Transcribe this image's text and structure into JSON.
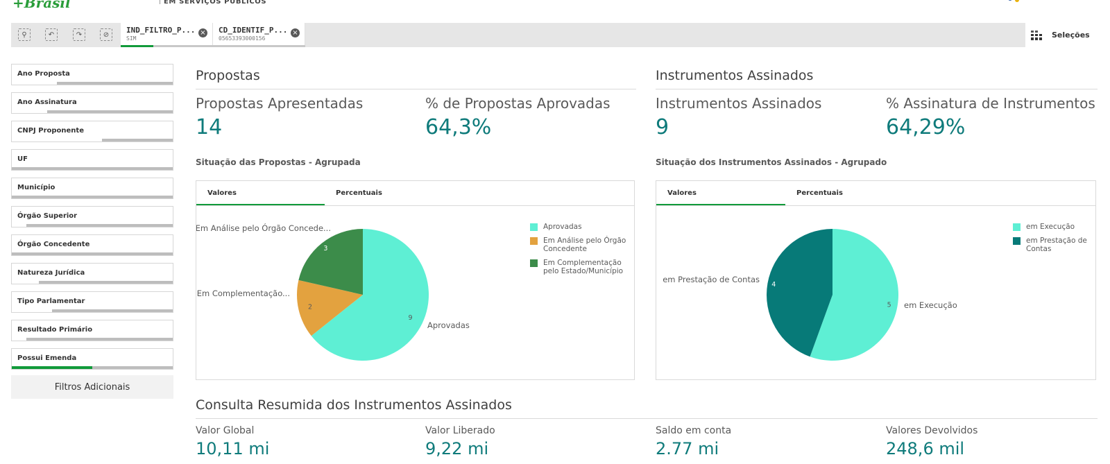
{
  "header": {
    "logo_text": "+Brasil",
    "subtitle": "EM SERVIÇOS PÚBLICOS"
  },
  "toolbar": {
    "selections": [
      {
        "field": "IND_FILTRO_P...",
        "value": "SIM",
        "fill_fraction": 0.35
      },
      {
        "field": "CD_IDENTIF_P...",
        "value": "05653393000156",
        "fill_fraction": 0.0
      }
    ],
    "selecoes_label": "Seleções"
  },
  "filters": [
    {
      "label": "Ano Proposta",
      "fill_fraction": 0.28
    },
    {
      "label": "Ano Assinatura",
      "fill_fraction": 0.22
    },
    {
      "label": "CNPJ Proponente",
      "fill_fraction": 0.56
    },
    {
      "label": "UF",
      "fill_fraction": 0.0
    },
    {
      "label": "Município",
      "fill_fraction": 0.0
    },
    {
      "label": "Órgão Superior",
      "fill_fraction": 0.09
    },
    {
      "label": "Órgão Concedente",
      "fill_fraction": 0.0
    },
    {
      "label": "Natureza Jurídica",
      "fill_fraction": 0.17
    },
    {
      "label": "Tipo Parlamentar",
      "fill_fraction": 0.25
    },
    {
      "label": "Resultado Primário",
      "fill_fraction": 0.09
    },
    {
      "label": "Possui Emenda",
      "fill_fraction": 0.5,
      "selected": true
    }
  ],
  "filtros_adicionais": "Filtros Adicionais",
  "propostas": {
    "title": "Propostas",
    "kpi1_label": "Propostas Apresentadas",
    "kpi1_value": "14",
    "kpi2_label": "% de Propostas Aprovadas",
    "kpi2_value": "64,3%",
    "chart_title": "Situação das Propostas - Agrupada",
    "tabs": [
      "Valores",
      "Percentuais"
    ]
  },
  "instrumentos": {
    "title": "Instrumentos Assinados",
    "kpi1_label": "Instrumentos Assinados",
    "kpi1_value": "9",
    "kpi2_label": "% Assinatura de Instrumentos",
    "kpi2_value": "64,29%",
    "chart_title": "Situação dos Instrumentos Assinados - Agrupado",
    "tabs": [
      "Valores",
      "Percentuais"
    ]
  },
  "chart_data": [
    {
      "type": "pie",
      "title": "Situação das Propostas - Agrupada",
      "slices": [
        {
          "name": "Aprovadas",
          "value": 9,
          "color": "#5eefd4",
          "label": "Aprovadas",
          "value_color": "#595959"
        },
        {
          "name": "Em Análise pelo Órgão Concedente",
          "value": 2,
          "color": "#e3a23f",
          "label": "Em Análise pelo Órgão Concede...",
          "value_color": "#595959"
        },
        {
          "name": "Em Complementação pelo Estado/Município",
          "value": 3,
          "color": "#3c8c4a",
          "label": "Em Complementação...",
          "value_color": "#ffffff"
        }
      ],
      "legend": [
        "Aprovadas",
        "Em Análise pelo Órgão Concedente",
        "Em Complementação pelo Estado/Município"
      ],
      "legend_position": "right"
    },
    {
      "type": "pie",
      "title": "Situação dos Instrumentos Assinados - Agrupado",
      "slices": [
        {
          "name": "em Execução",
          "value": 5,
          "color": "#5eefd4",
          "label": "em Execução",
          "value_color": "#595959"
        },
        {
          "name": "em Prestação de Contas",
          "value": 4,
          "color": "#077a78",
          "label": "em Prestação de Contas",
          "value_color": "#ffffff"
        }
      ],
      "legend": [
        "em Execução",
        "em Prestação de Contas"
      ],
      "legend_position": "right"
    }
  ],
  "summary": {
    "title": "Consulta Resumida dos Instrumentos Assinados",
    "items": [
      {
        "label": "Valor Global",
        "value": "10,11 mi"
      },
      {
        "label": "Valor Liberado",
        "value": "9,22 mi"
      },
      {
        "label": "Saldo em conta",
        "value": "2.77 mi"
      },
      {
        "label": "Valores Devolvidos",
        "value": "248,6 mil"
      }
    ]
  }
}
